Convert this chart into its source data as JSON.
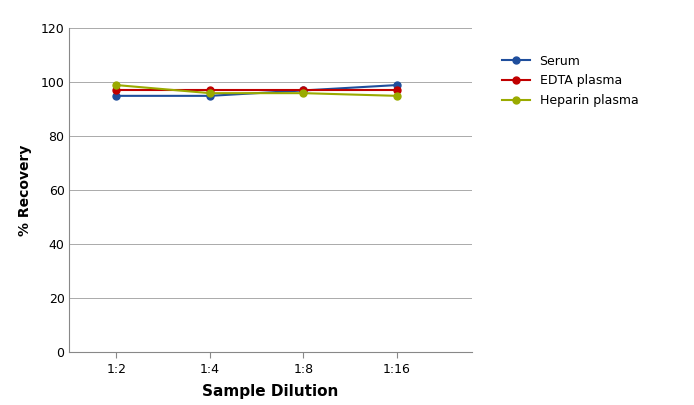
{
  "x_labels": [
    "1:2",
    "1:4",
    "1:8",
    "1:16"
  ],
  "x_positions": [
    1,
    2,
    3,
    4
  ],
  "serum": [
    95,
    95,
    97,
    99
  ],
  "edta_plasma": [
    97,
    97,
    97,
    97
  ],
  "heparin_plasma": [
    99,
    96,
    96,
    95
  ],
  "serum_color": "#1f4e9c",
  "edta_plasma_color": "#c00000",
  "heparin_plasma_color": "#9aaa00",
  "xlabel": "Sample Dilution",
  "ylabel": "% Recovery",
  "ylim": [
    0,
    120
  ],
  "yticks": [
    0,
    20,
    40,
    60,
    80,
    100,
    120
  ],
  "legend_labels": [
    "Serum",
    "EDTA plasma",
    "Heparin plasma"
  ],
  "background_color": "#ffffff",
  "grid_color": "#aaaaaa",
  "marker_size": 5,
  "line_width": 1.5,
  "xlabel_fontsize": 11,
  "ylabel_fontsize": 10,
  "tick_fontsize": 9,
  "legend_fontsize": 9
}
